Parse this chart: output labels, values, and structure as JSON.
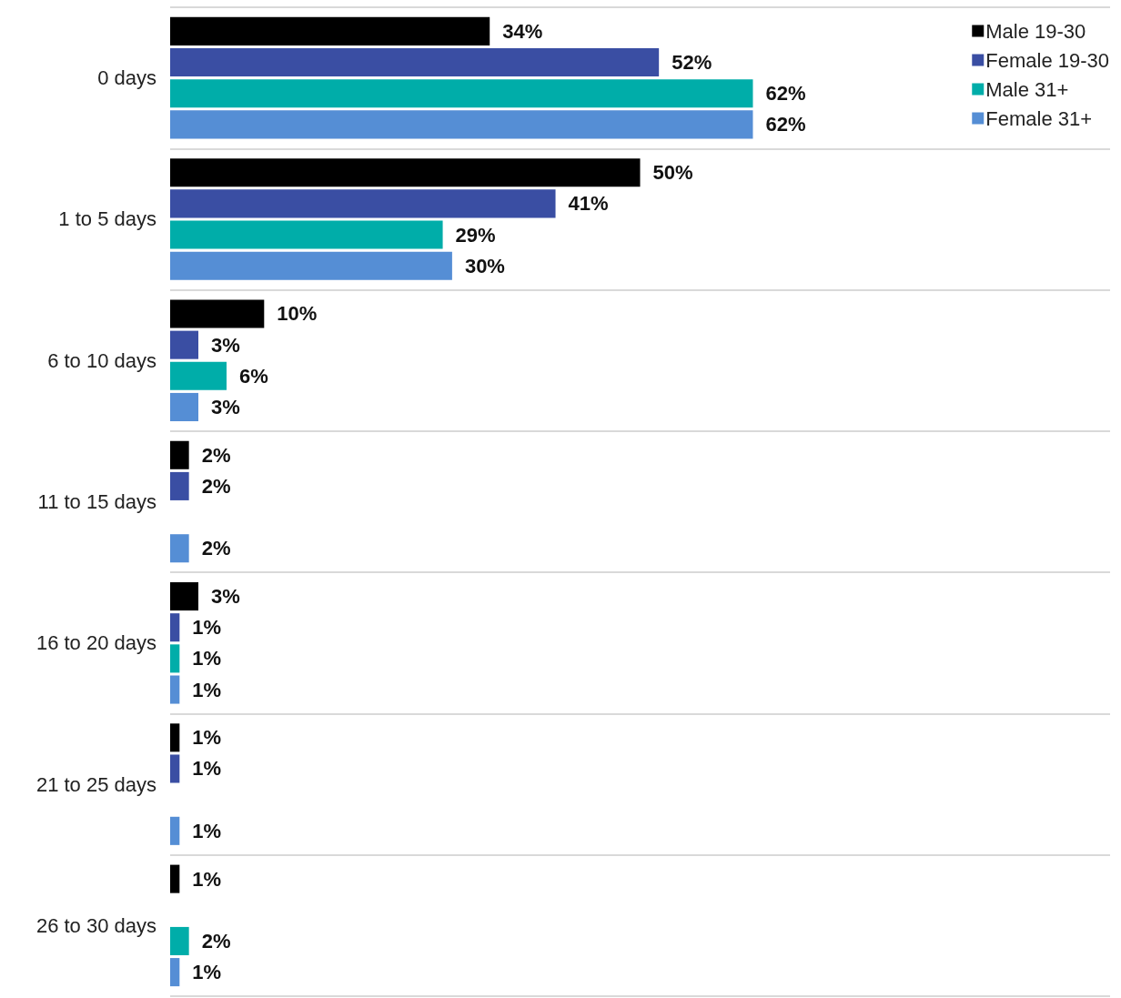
{
  "chart_data": {
    "type": "bar",
    "orientation": "horizontal",
    "categories": [
      "0 days",
      "1 to 5 days",
      "6 to 10 days",
      "11 to 15 days",
      "16 to 20 days",
      "21 to 25 days",
      "26 to 30 days"
    ],
    "series": [
      {
        "name": "Male 19-30",
        "color": "#000000",
        "values": [
          34,
          50,
          10,
          2,
          3,
          1,
          1
        ],
        "value_labels": [
          "34%",
          "50%",
          "10%",
          "2%",
          "3%",
          "1%",
          "1%"
        ]
      },
      {
        "name": "Female 19-30",
        "color": "#3a4ea3",
        "values": [
          52,
          41,
          3,
          2,
          1,
          1,
          null
        ],
        "value_labels": [
          "52%",
          "41%",
          "3%",
          "2%",
          "1%",
          "1%",
          null
        ]
      },
      {
        "name": "Male 31+",
        "color": "#00ada9",
        "values": [
          62,
          29,
          6,
          null,
          1,
          null,
          2
        ],
        "value_labels": [
          "62%",
          "29%",
          "6%",
          null,
          "1%",
          null,
          "2%"
        ]
      },
      {
        "name": "Female 31+",
        "color": "#558ed5",
        "values": [
          62,
          30,
          3,
          2,
          1,
          1,
          1
        ],
        "value_labels": [
          "62%",
          "30%",
          "3%",
          "2%",
          "1%",
          "1%",
          "1%"
        ]
      }
    ],
    "xlim": [
      0,
      100
    ],
    "tick_labels": "y",
    "grid": "y",
    "legend": "top right",
    "marker": "square"
  }
}
